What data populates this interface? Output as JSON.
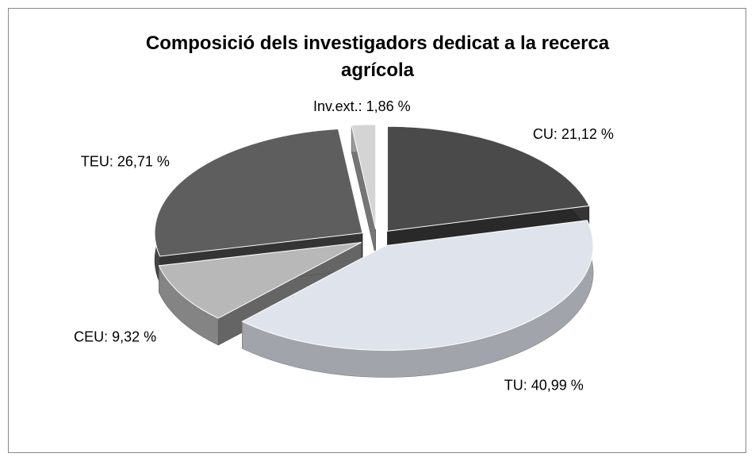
{
  "chart_data": {
    "type": "pie",
    "title": "Composició  dels investigadors dedicat a la recerca agrícola",
    "values": [
      21.12,
      40.99,
      9.32,
      26.71,
      1.86
    ],
    "value_labels": [
      "CU: 21,12 %",
      "TU: 40,99 %",
      "CEU: 9,32 %",
      "TEU: 26,71 %",
      "Inv.ext.: 1,86 %"
    ],
    "colors": [
      "#4a4a4a",
      "#dfe4ec",
      "#b8b8b8",
      "#5e5e5e",
      "#d4d4d4"
    ]
  }
}
